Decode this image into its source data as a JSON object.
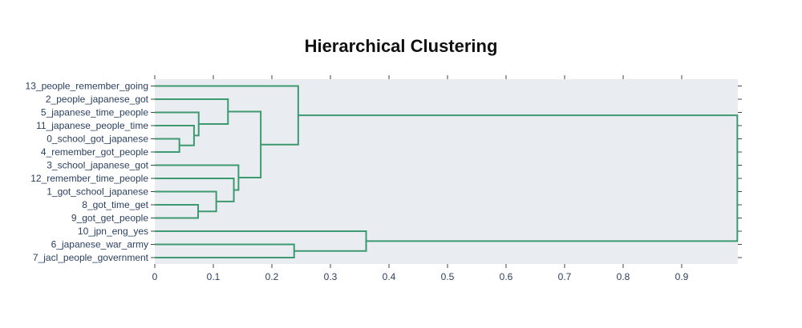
{
  "chart_data": {
    "type": "dendrogram",
    "title": "Hierarchical Clustering",
    "orientation": "horizontal",
    "xlim": [
      0,
      1.0
    ],
    "x_ticks": [
      "0",
      "0.1",
      "0.2",
      "0.3",
      "0.4",
      "0.5",
      "0.6",
      "0.7",
      "0.8",
      "0.9"
    ],
    "x_tick_values": [
      0,
      0.1,
      0.2,
      0.3,
      0.4,
      0.5,
      0.6,
      0.7,
      0.8,
      0.9
    ],
    "grid": false,
    "line_color": "#3d9970",
    "plot_bg": "#e9edf1",
    "leaves": [
      "13_people_remember_going",
      "2_people_japanese_got",
      "5_japanese_time_people",
      "11_japanese_people_time",
      "0_school_got_japanese",
      "4_remember_got_people",
      "3_school_japanese_got",
      "12_remember_time_people",
      "1_got_school_japanese",
      "8_got_time_get",
      "9_got_get_people",
      "10_jpn_eng_yes",
      "6_japanese_war_army",
      "7_jacl_people_government"
    ],
    "merges": [
      {
        "id": "m1",
        "children": [
          "L4",
          "L5"
        ],
        "distance": 0.042
      },
      {
        "id": "m2",
        "children": [
          "L3",
          "m1"
        ],
        "distance": 0.067
      },
      {
        "id": "m3",
        "children": [
          "L2",
          "m2"
        ],
        "distance": 0.075
      },
      {
        "id": "m4",
        "children": [
          "L1",
          "m3"
        ],
        "distance": 0.125
      },
      {
        "id": "m5",
        "children": [
          "L9",
          "L10"
        ],
        "distance": 0.074
      },
      {
        "id": "m6",
        "children": [
          "L8",
          "m5"
        ],
        "distance": 0.105
      },
      {
        "id": "m7",
        "children": [
          "L7",
          "m6"
        ],
        "distance": 0.135
      },
      {
        "id": "m8",
        "children": [
          "L6",
          "m7"
        ],
        "distance": 0.143
      },
      {
        "id": "m9",
        "children": [
          "m4",
          "m8"
        ],
        "distance": 0.181
      },
      {
        "id": "m10",
        "children": [
          "L0",
          "m9"
        ],
        "distance": 0.245
      },
      {
        "id": "m11",
        "children": [
          "L12",
          "L13"
        ],
        "distance": 0.238
      },
      {
        "id": "m12",
        "children": [
          "L11",
          "m11"
        ],
        "distance": 0.361
      },
      {
        "id": "m13",
        "children": [
          "m10",
          "m12"
        ],
        "distance": 0.995
      }
    ]
  }
}
